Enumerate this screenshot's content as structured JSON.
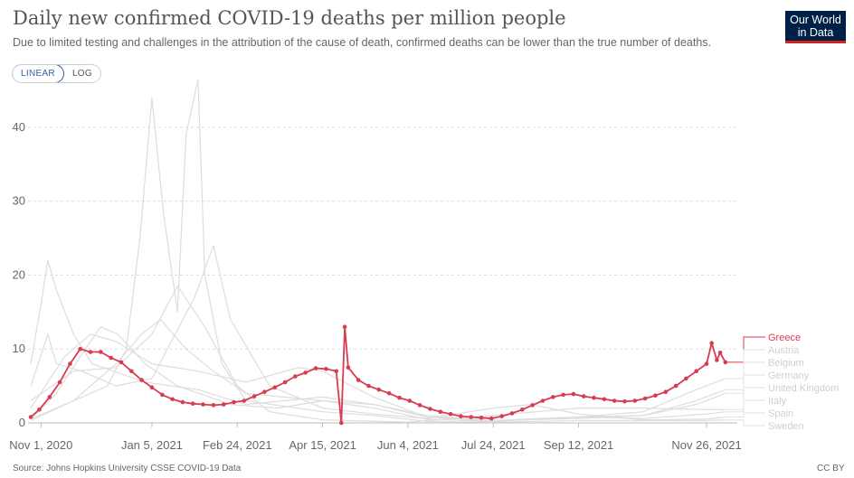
{
  "header": {
    "title": "Daily new confirmed COVID-19 deaths per million people",
    "subtitle": "Due to limited testing and challenges in the attribution of the cause of death, confirmed deaths can be lower than the true number of deaths.",
    "logo_line1": "Our World",
    "logo_line2": "in Data"
  },
  "scale_toggle": {
    "linear_label": "LINEAR",
    "log_label": "LOG",
    "selected": "LINEAR"
  },
  "footer": {
    "source": "Source: Johns Hopkins University CSSE COVID-19 Data",
    "license": "CC BY"
  },
  "colors": {
    "highlight": "#d73c50",
    "background_series": "#dddddd",
    "grid": "#dddddd",
    "logo_bg": "#002147",
    "logo_accent": "#ce261e"
  },
  "chart_data": {
    "type": "line",
    "title": "Daily new confirmed COVID-19 deaths per million people",
    "xlabel": "",
    "ylabel": "",
    "xlim": [
      "2020-10-26",
      "2021-12-14"
    ],
    "ylim": [
      0,
      45
    ],
    "y_ticks": [
      0,
      10,
      20,
      30,
      40
    ],
    "x_ticks": [
      "2020-11-01",
      "2021-01-05",
      "2021-02-24",
      "2021-04-15",
      "2021-06-04",
      "2021-07-24",
      "2021-09-12",
      "2021-11-26"
    ],
    "x_tick_labels": [
      "Nov 1, 2020",
      "Jan 5, 2021",
      "Feb 24, 2021",
      "Apr 15, 2021",
      "Jun 4, 2021",
      "Jul 24, 2021",
      "Sep 12, 2021",
      "Nov 26, 2021"
    ],
    "grid": true,
    "scale": "linear",
    "legend_position": "right",
    "highlighted_series": "Greece",
    "series": [
      {
        "name": "Greece",
        "highlighted": true,
        "points": [
          [
            "2020-10-26",
            0.8
          ],
          [
            "2020-10-31",
            1.8
          ],
          [
            "2020-11-06",
            3.5
          ],
          [
            "2020-11-12",
            5.5
          ],
          [
            "2020-11-18",
            8.0
          ],
          [
            "2020-11-24",
            10.0
          ],
          [
            "2020-11-30",
            9.6
          ],
          [
            "2020-12-06",
            9.6
          ],
          [
            "2020-12-12",
            8.8
          ],
          [
            "2020-12-18",
            8.2
          ],
          [
            "2020-12-24",
            7.0
          ],
          [
            "2020-12-30",
            5.8
          ],
          [
            "2021-01-05",
            4.8
          ],
          [
            "2021-01-11",
            3.8
          ],
          [
            "2021-01-17",
            3.2
          ],
          [
            "2021-01-23",
            2.8
          ],
          [
            "2021-01-29",
            2.6
          ],
          [
            "2021-02-04",
            2.5
          ],
          [
            "2021-02-10",
            2.4
          ],
          [
            "2021-02-16",
            2.5
          ],
          [
            "2021-02-22",
            2.8
          ],
          [
            "2021-02-28",
            3.0
          ],
          [
            "2021-03-06",
            3.6
          ],
          [
            "2021-03-12",
            4.2
          ],
          [
            "2021-03-18",
            4.8
          ],
          [
            "2021-03-24",
            5.5
          ],
          [
            "2021-03-30",
            6.3
          ],
          [
            "2021-04-05",
            6.8
          ],
          [
            "2021-04-11",
            7.4
          ],
          [
            "2021-04-17",
            7.3
          ],
          [
            "2021-04-23",
            7.0
          ],
          [
            "2021-04-26",
            0.0
          ],
          [
            "2021-04-28",
            13.0
          ],
          [
            "2021-04-30",
            7.5
          ],
          [
            "2021-05-06",
            5.8
          ],
          [
            "2021-05-12",
            5.0
          ],
          [
            "2021-05-18",
            4.5
          ],
          [
            "2021-05-24",
            4.0
          ],
          [
            "2021-05-30",
            3.4
          ],
          [
            "2021-06-05",
            3.0
          ],
          [
            "2021-06-11",
            2.4
          ],
          [
            "2021-06-17",
            1.9
          ],
          [
            "2021-06-23",
            1.5
          ],
          [
            "2021-06-29",
            1.2
          ],
          [
            "2021-07-05",
            0.9
          ],
          [
            "2021-07-11",
            0.8
          ],
          [
            "2021-07-17",
            0.7
          ],
          [
            "2021-07-23",
            0.6
          ],
          [
            "2021-07-29",
            0.9
          ],
          [
            "2021-08-04",
            1.3
          ],
          [
            "2021-08-10",
            1.8
          ],
          [
            "2021-08-16",
            2.4
          ],
          [
            "2021-08-22",
            3.0
          ],
          [
            "2021-08-28",
            3.5
          ],
          [
            "2021-09-03",
            3.8
          ],
          [
            "2021-09-09",
            3.9
          ],
          [
            "2021-09-15",
            3.6
          ],
          [
            "2021-09-21",
            3.4
          ],
          [
            "2021-09-27",
            3.2
          ],
          [
            "2021-10-03",
            3.0
          ],
          [
            "2021-10-09",
            2.9
          ],
          [
            "2021-10-15",
            3.0
          ],
          [
            "2021-10-21",
            3.3
          ],
          [
            "2021-10-27",
            3.7
          ],
          [
            "2021-11-02",
            4.2
          ],
          [
            "2021-11-08",
            5.0
          ],
          [
            "2021-11-14",
            6.0
          ],
          [
            "2021-11-20",
            7.0
          ],
          [
            "2021-11-26",
            8.0
          ],
          [
            "2021-11-29",
            10.8
          ],
          [
            "2021-12-02",
            8.5
          ],
          [
            "2021-12-04",
            9.5
          ],
          [
            "2021-12-07",
            8.2
          ]
        ]
      },
      {
        "name": "Austria",
        "highlighted": false,
        "points": [
          [
            "2020-10-26",
            0.5
          ],
          [
            "2020-11-10",
            4.0
          ],
          [
            "2020-11-24",
            9.0
          ],
          [
            "2020-12-06",
            13.0
          ],
          [
            "2020-12-16",
            12.0
          ],
          [
            "2021-01-01",
            8.0
          ],
          [
            "2021-01-20",
            5.0
          ],
          [
            "2021-02-20",
            2.5
          ],
          [
            "2021-03-20",
            2.0
          ],
          [
            "2021-04-15",
            3.0
          ],
          [
            "2021-05-15",
            2.0
          ],
          [
            "2021-06-15",
            0.5
          ],
          [
            "2021-07-24",
            0.2
          ],
          [
            "2021-09-12",
            0.8
          ],
          [
            "2021-10-20",
            1.5
          ],
          [
            "2021-11-20",
            4.5
          ],
          [
            "2021-12-07",
            6.0
          ]
        ]
      },
      {
        "name": "Belgium",
        "highlighted": false,
        "points": [
          [
            "2020-10-26",
            8.0
          ],
          [
            "2020-11-01",
            16.0
          ],
          [
            "2020-11-05",
            22.0
          ],
          [
            "2020-11-10",
            18.0
          ],
          [
            "2020-11-20",
            12.0
          ],
          [
            "2020-12-01",
            8.0
          ],
          [
            "2021-01-01",
            5.5
          ],
          [
            "2021-02-01",
            4.5
          ],
          [
            "2021-03-01",
            2.5
          ],
          [
            "2021-04-15",
            3.5
          ],
          [
            "2021-05-15",
            2.5
          ],
          [
            "2021-06-15",
            1.0
          ],
          [
            "2021-07-24",
            0.3
          ],
          [
            "2021-09-12",
            0.8
          ],
          [
            "2021-10-20",
            1.0
          ],
          [
            "2021-11-20",
            3.0
          ],
          [
            "2021-12-07",
            4.5
          ]
        ]
      },
      {
        "name": "Germany",
        "highlighted": false,
        "points": [
          [
            "2020-10-26",
            0.5
          ],
          [
            "2020-11-20",
            3.0
          ],
          [
            "2020-12-15",
            8.0
          ],
          [
            "2020-12-30",
            12.0
          ],
          [
            "2021-01-10",
            14.0
          ],
          [
            "2021-01-25",
            10.0
          ],
          [
            "2021-02-10",
            7.0
          ],
          [
            "2021-03-01",
            4.0
          ],
          [
            "2021-04-15",
            3.0
          ],
          [
            "2021-05-15",
            2.5
          ],
          [
            "2021-06-15",
            0.8
          ],
          [
            "2021-07-24",
            0.3
          ],
          [
            "2021-09-12",
            0.6
          ],
          [
            "2021-10-20",
            1.0
          ],
          [
            "2021-11-20",
            2.5
          ],
          [
            "2021-12-07",
            4.0
          ]
        ]
      },
      {
        "name": "United Kingdom",
        "highlighted": false,
        "points": [
          [
            "2020-10-26",
            3.0
          ],
          [
            "2020-11-20",
            7.0
          ],
          [
            "2020-12-15",
            7.5
          ],
          [
            "2021-01-05",
            12.0
          ],
          [
            "2021-01-20",
            18.5
          ],
          [
            "2021-02-05",
            13.0
          ],
          [
            "2021-02-24",
            5.0
          ],
          [
            "2021-03-15",
            1.5
          ],
          [
            "2021-04-15",
            0.4
          ],
          [
            "2021-06-04",
            0.1
          ],
          [
            "2021-07-24",
            1.0
          ],
          [
            "2021-09-12",
            2.0
          ],
          [
            "2021-10-20",
            2.0
          ],
          [
            "2021-11-26",
            1.8
          ],
          [
            "2021-12-07",
            1.8
          ]
        ]
      },
      {
        "name": "Italy",
        "highlighted": false,
        "points": [
          [
            "2020-10-26",
            2.0
          ],
          [
            "2020-11-15",
            9.0
          ],
          [
            "2020-11-30",
            12.0
          ],
          [
            "2020-12-15",
            11.0
          ],
          [
            "2021-01-05",
            8.0
          ],
          [
            "2021-02-01",
            7.0
          ],
          [
            "2021-03-01",
            5.5
          ],
          [
            "2021-04-01",
            7.5
          ],
          [
            "2021-04-15",
            7.0
          ],
          [
            "2021-05-15",
            3.5
          ],
          [
            "2021-06-15",
            0.8
          ],
          [
            "2021-07-24",
            0.3
          ],
          [
            "2021-09-12",
            0.8
          ],
          [
            "2021-10-20",
            0.6
          ],
          [
            "2021-11-26",
            1.2
          ],
          [
            "2021-12-07",
            1.5
          ]
        ]
      },
      {
        "name": "Spain",
        "highlighted": false,
        "points": [
          [
            "2020-10-26",
            5.0
          ],
          [
            "2020-11-05",
            12.0
          ],
          [
            "2020-11-10",
            8.0
          ],
          [
            "2020-11-25",
            7.0
          ],
          [
            "2020-12-15",
            5.0
          ],
          [
            "2021-01-05",
            6.0
          ],
          [
            "2021-01-30",
            17.0
          ],
          [
            "2021-02-10",
            24.0
          ],
          [
            "2021-02-20",
            14.0
          ],
          [
            "2021-03-15",
            5.0
          ],
          [
            "2021-04-15",
            2.0
          ],
          [
            "2021-05-15",
            1.2
          ],
          [
            "2021-06-15",
            0.6
          ],
          [
            "2021-07-24",
            2.0
          ],
          [
            "2021-08-15",
            2.5
          ],
          [
            "2021-09-12",
            1.2
          ],
          [
            "2021-10-20",
            0.4
          ],
          [
            "2021-11-26",
            0.5
          ],
          [
            "2021-12-07",
            0.8
          ]
        ]
      },
      {
        "name": "Sweden",
        "highlighted": false,
        "points": [
          [
            "2020-10-26",
            0.3
          ],
          [
            "2020-11-20",
            3.0
          ],
          [
            "2020-12-10",
            5.0
          ],
          [
            "2020-12-21",
            10.0
          ],
          [
            "2020-12-29",
            25.0
          ],
          [
            "2021-01-05",
            44.0
          ],
          [
            "2021-01-12",
            28.0
          ],
          [
            "2021-01-20",
            15.0
          ],
          [
            "2021-01-25",
            39.0
          ],
          [
            "2021-02-01",
            46.5
          ],
          [
            "2021-02-05",
            20.0
          ],
          [
            "2021-02-15",
            8.0
          ],
          [
            "2021-03-01",
            3.0
          ],
          [
            "2021-04-15",
            1.5
          ],
          [
            "2021-05-15",
            1.0
          ],
          [
            "2021-06-15",
            0.2
          ],
          [
            "2021-07-24",
            0.1
          ],
          [
            "2021-09-12",
            0.3
          ],
          [
            "2021-11-26",
            0.3
          ],
          [
            "2021-12-07",
            0.4
          ]
        ]
      }
    ]
  }
}
